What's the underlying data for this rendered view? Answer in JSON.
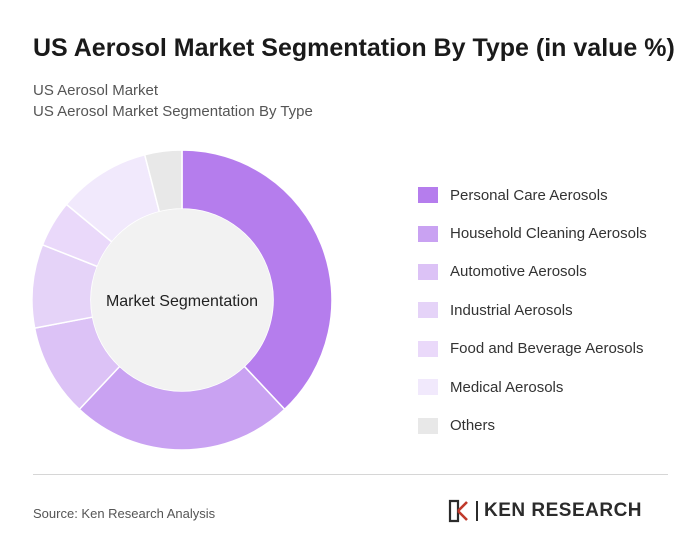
{
  "title": "US Aerosol Market Segmentation By Type (in value %)",
  "subtitle_1": "US Aerosol Market",
  "subtitle_2": "US Aerosol Market Segmentation By Type",
  "chart_data": {
    "type": "pie",
    "donut": true,
    "center_label": "Market Segmentation",
    "categories": [
      "Personal Care Aerosols",
      "Household Cleaning Aerosols",
      "Automotive Aerosols",
      "Industrial Aerosols",
      "Food and Beverage Aerosols",
      "Medical Aerosols",
      "Others"
    ],
    "values": [
      38,
      24,
      10,
      9,
      5,
      10,
      4
    ],
    "colors": [
      "#b57ded",
      "#c9a2f2",
      "#dcc2f6",
      "#e5d3f8",
      "#ead9fa",
      "#f1e9fc",
      "#e8e8e8"
    ],
    "legend_position": "right"
  },
  "footer": {
    "source": "Source: Ken Research Analysis",
    "logo_left": "K",
    "logo_text": "KEN RESEARCH"
  }
}
